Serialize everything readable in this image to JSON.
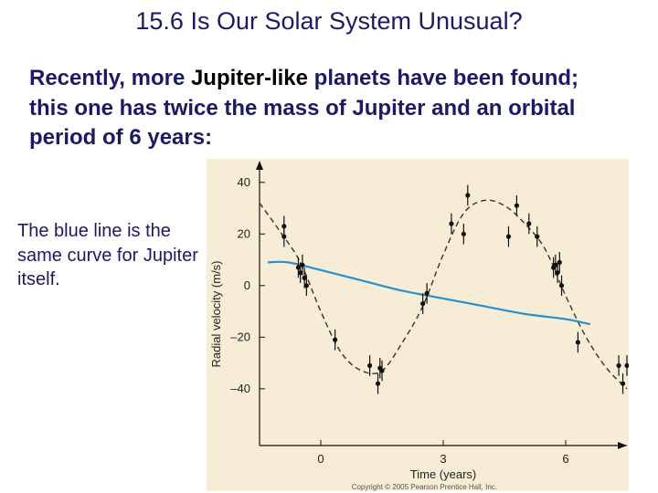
{
  "slide": {
    "title": "15.6 Is Our Solar System Unusual?",
    "intro_pre": "Recently, more ",
    "intro_highlight": "Jupiter-like",
    "intro_post": " planets have been found; this one has twice the mass of Jupiter and an orbital period of 6 years:",
    "note": "The blue line is the same curve for Jupiter itself.",
    "credit": "Copyright © 2005 Pearson Prentice Hall, Inc."
  },
  "chart_data": {
    "type": "scatter",
    "xlabel": "Time (years)",
    "ylabel": "Radial velocity (m/s)",
    "xlim": [
      -1.5,
      7.5
    ],
    "ylim": [
      -62,
      47
    ],
    "xticks": [
      0,
      3,
      6
    ],
    "yticks": [
      40,
      20,
      0,
      -20,
      -40
    ],
    "ytick_labels": [
      "40",
      "20",
      "0",
      "–20",
      "–40"
    ],
    "colors": {
      "points": "#111111",
      "fit": "#333333",
      "jupiter": "#2a8fd0",
      "panel": "#f7edd6"
    },
    "series": [
      {
        "kind": "points",
        "x": [
          -0.9,
          -0.9,
          -0.55,
          -0.5,
          -0.45,
          -0.4,
          -0.35,
          0.35,
          1.2,
          1.4,
          1.45,
          1.5,
          2.5,
          2.6,
          3.2,
          3.5,
          3.6,
          4.6,
          4.8,
          5.1,
          5.3,
          5.7,
          5.75,
          5.8,
          5.85,
          5.9,
          6.3,
          7.3,
          7.4,
          7.5
        ],
        "y": [
          23,
          19,
          7,
          5,
          8,
          3,
          0,
          -21,
          -31,
          -38,
          -32,
          -33,
          -7,
          -3,
          24,
          20,
          35,
          19,
          31,
          24,
          19,
          7,
          8,
          5,
          9,
          0,
          -22,
          -31,
          -38,
          -31
        ],
        "err": [
          4,
          4,
          4,
          4,
          4,
          4,
          4,
          4,
          4,
          4,
          4,
          4,
          4,
          4,
          4,
          4,
          4,
          4,
          4,
          4,
          4,
          4,
          4,
          4,
          4,
          4,
          4,
          4,
          4,
          4
        ]
      },
      {
        "kind": "dashed-fit",
        "x": [
          -1.5,
          -1.0,
          -0.5,
          0.0,
          0.5,
          1.0,
          1.5,
          2.0,
          2.5,
          3.0,
          3.5,
          4.0,
          4.5,
          5.0,
          5.5,
          6.0,
          6.5,
          7.0,
          7.5
        ],
        "y": [
          32,
          21,
          9,
          -10,
          -26,
          -33,
          -33,
          -22,
          -8,
          12,
          28,
          33,
          31,
          24,
          14,
          -4,
          -20,
          -32,
          -40
        ]
      },
      {
        "kind": "line",
        "x": [
          -1.3,
          -0.8,
          0,
          1,
          2,
          3,
          4,
          5,
          6,
          6.6
        ],
        "y": [
          9,
          9,
          6,
          2,
          -2,
          -5,
          -8,
          -11,
          -13,
          -15
        ]
      }
    ]
  }
}
